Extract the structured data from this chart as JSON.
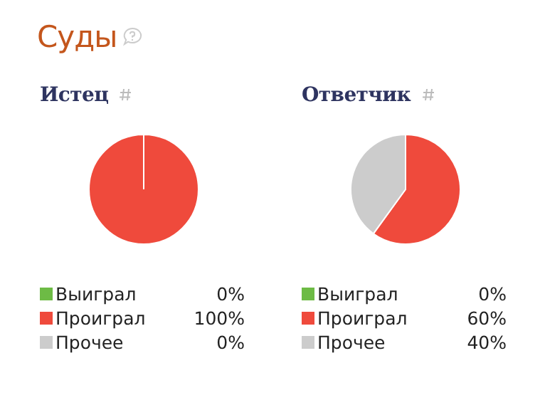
{
  "chart_data": [
    {
      "type": "other",
      "title": "Суды"
    },
    {
      "type": "pie",
      "title": "Истец",
      "categories": [
        "Выиграл",
        "Проиграл",
        "Прочее"
      ],
      "values": [
        0,
        100,
        0
      ],
      "value_labels": [
        "0%",
        "100%",
        "0%"
      ],
      "colors": [
        "#6dbb45",
        "#ef4a3c",
        "#cccccc"
      ],
      "legend": "bottom"
    },
    {
      "type": "pie",
      "title": "Ответчик",
      "categories": [
        "Выиграл",
        "Проиграл",
        "Прочее"
      ],
      "values": [
        0,
        60,
        40
      ],
      "value_labels": [
        "0%",
        "60%",
        "40%"
      ],
      "colors": [
        "#6dbb45",
        "#ef4a3c",
        "#cccccc"
      ],
      "legend": "bottom"
    }
  ]
}
